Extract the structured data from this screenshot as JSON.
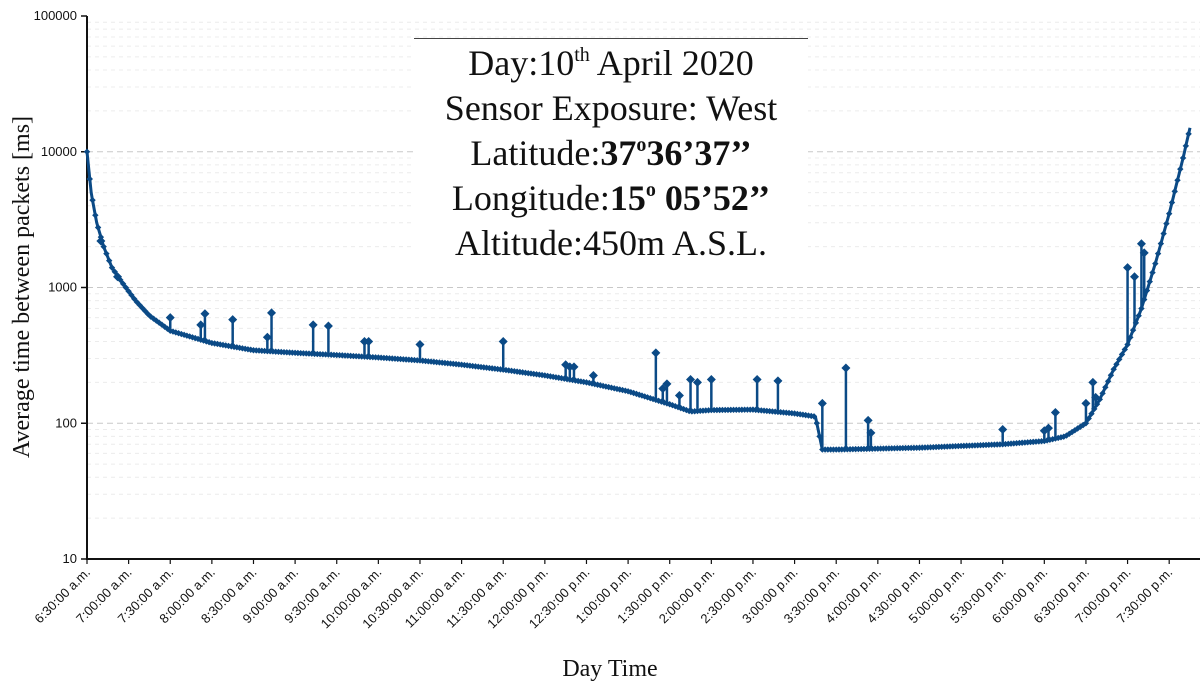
{
  "colors": {
    "series": "#0b4a86",
    "grid": "#d9d9d9",
    "axis": "#111111"
  },
  "info_box": {
    "day_prefix": "Day:10",
    "day_sup": "th",
    "day_suffix": " April 2020",
    "exposure": "Sensor Exposure: West",
    "lat_label": "Latitude:",
    "lat_deg": "37",
    "lat_deg_mark": "o",
    "lat_rest": "36’37’’",
    "lon_label": "Longitude:",
    "lon_deg": "15",
    "lon_deg_mark": "o",
    "lon_rest": " 05’52’’",
    "altitude": "Altitude:450m A.S.L."
  },
  "chart_data": {
    "type": "line",
    "title": "",
    "xlabel": "Day Time",
    "ylabel": "Average time between packets [ms]",
    "y_scale": "log",
    "ylim": [
      10,
      100000
    ],
    "y_ticks": [
      10,
      100,
      1000,
      10000,
      100000
    ],
    "y_tick_labels": [
      "10",
      "100",
      "1000",
      "10000",
      "100000"
    ],
    "grid": "horizontal dashed, minor log gridlines",
    "x_range_hours": [
      6.5,
      19.75
    ],
    "x_ticks": [
      "6:30:00 a.m.",
      "7:00:00 a.m.",
      "7:30:00 a.m.",
      "8:00:00 a.m.",
      "8:30:00 a.m.",
      "9:00:00 a.m.",
      "9:30:00 a.m.",
      "10:00:00 a.m.",
      "10:30:00 a.m.",
      "11:00:00 a.m.",
      "11:30:00 a.m.",
      "12:00:00 p.m.",
      "12:30:00 p.m.",
      "1:00:00 p.m.",
      "1:30:00 p.m.",
      "2:00:00 p.m.",
      "2:30:00 p.m.",
      "3:00:00 p.m.",
      "3:30:00 p.m.",
      "4:00:00 p.m.",
      "4:30:00 p.m.",
      "5:00:00 p.m.",
      "5:30:00 p.m.",
      "6:00:00 p.m.",
      "6:30:00 p.m.",
      "7:00:00 p.m.",
      "7:30:00 p.m."
    ],
    "series": [
      {
        "marker": "diamond",
        "baseline": [
          [
            "6:30",
            10000
          ],
          [
            "6:33",
            5000
          ],
          [
            "6:37",
            3000
          ],
          [
            "6:42",
            2000
          ],
          [
            "6:48",
            1400
          ],
          [
            "6:55",
            1100
          ],
          [
            "7:05",
            800
          ],
          [
            "7:15",
            620
          ],
          [
            "7:30",
            480
          ],
          [
            "8:00",
            390
          ],
          [
            "8:30",
            345
          ],
          [
            "9:00",
            330
          ],
          [
            "9:30",
            318
          ],
          [
            "10:00",
            305
          ],
          [
            "10:30",
            290
          ],
          [
            "11:00",
            270
          ],
          [
            "11:30",
            248
          ],
          [
            "12:00",
            225
          ],
          [
            "12:30",
            200
          ],
          [
            "1:00",
            172
          ],
          [
            "1:30",
            138
          ],
          [
            "1:45",
            122
          ],
          [
            "2:00",
            125
          ],
          [
            "2:30",
            126
          ],
          [
            "3:00",
            118
          ],
          [
            "3:15",
            112
          ],
          [
            "3:18",
            80
          ],
          [
            "3:20",
            64
          ],
          [
            "3:30",
            64
          ],
          [
            "4:00",
            65
          ],
          [
            "4:30",
            66
          ],
          [
            "5:00",
            68
          ],
          [
            "5:30",
            70
          ],
          [
            "6:00",
            74
          ],
          [
            "6:15",
            80
          ],
          [
            "6:30",
            100
          ],
          [
            "6:40",
            150
          ],
          [
            "6:50",
            250
          ],
          [
            "7:00",
            380
          ],
          [
            "7:10",
            700
          ],
          [
            "7:20",
            1500
          ],
          [
            "7:30",
            3500
          ],
          [
            "7:40",
            9000
          ],
          [
            "7:45",
            15000
          ]
        ],
        "spikes": [
          [
            "6:40",
            2200
          ],
          [
            "6:52",
            1200
          ],
          [
            "7:30",
            600
          ],
          [
            "7:52",
            530
          ],
          [
            "7:55",
            640
          ],
          [
            "8:15",
            580
          ],
          [
            "8:40",
            430
          ],
          [
            "8:43",
            650
          ],
          [
            "9:13",
            530
          ],
          [
            "9:24",
            520
          ],
          [
            "9:50",
            400
          ],
          [
            "9:53",
            400
          ],
          [
            "10:30",
            380
          ],
          [
            "11:30",
            400
          ],
          [
            "12:15",
            270
          ],
          [
            "12:18",
            260
          ],
          [
            "12:21",
            260
          ],
          [
            "12:35",
            225
          ],
          [
            "1:20",
            330
          ],
          [
            "1:25",
            180
          ],
          [
            "1:28",
            195
          ],
          [
            "1:37",
            160
          ],
          [
            "1:45",
            210
          ],
          [
            "1:50",
            200
          ],
          [
            "2:00",
            210
          ],
          [
            "2:33",
            210
          ],
          [
            "2:48",
            205
          ],
          [
            "3:20",
            140
          ],
          [
            "3:37",
            255
          ],
          [
            "3:53",
            105
          ],
          [
            "3:55",
            85
          ],
          [
            "5:30",
            90
          ],
          [
            "6:00",
            88
          ],
          [
            "6:03",
            92
          ],
          [
            "6:08",
            120
          ],
          [
            "6:30",
            140
          ],
          [
            "6:35",
            200
          ],
          [
            "6:37",
            155
          ],
          [
            "7:00",
            1400
          ],
          [
            "7:05",
            1200
          ],
          [
            "7:10",
            2100
          ],
          [
            "7:12",
            1800
          ]
        ]
      }
    ]
  }
}
